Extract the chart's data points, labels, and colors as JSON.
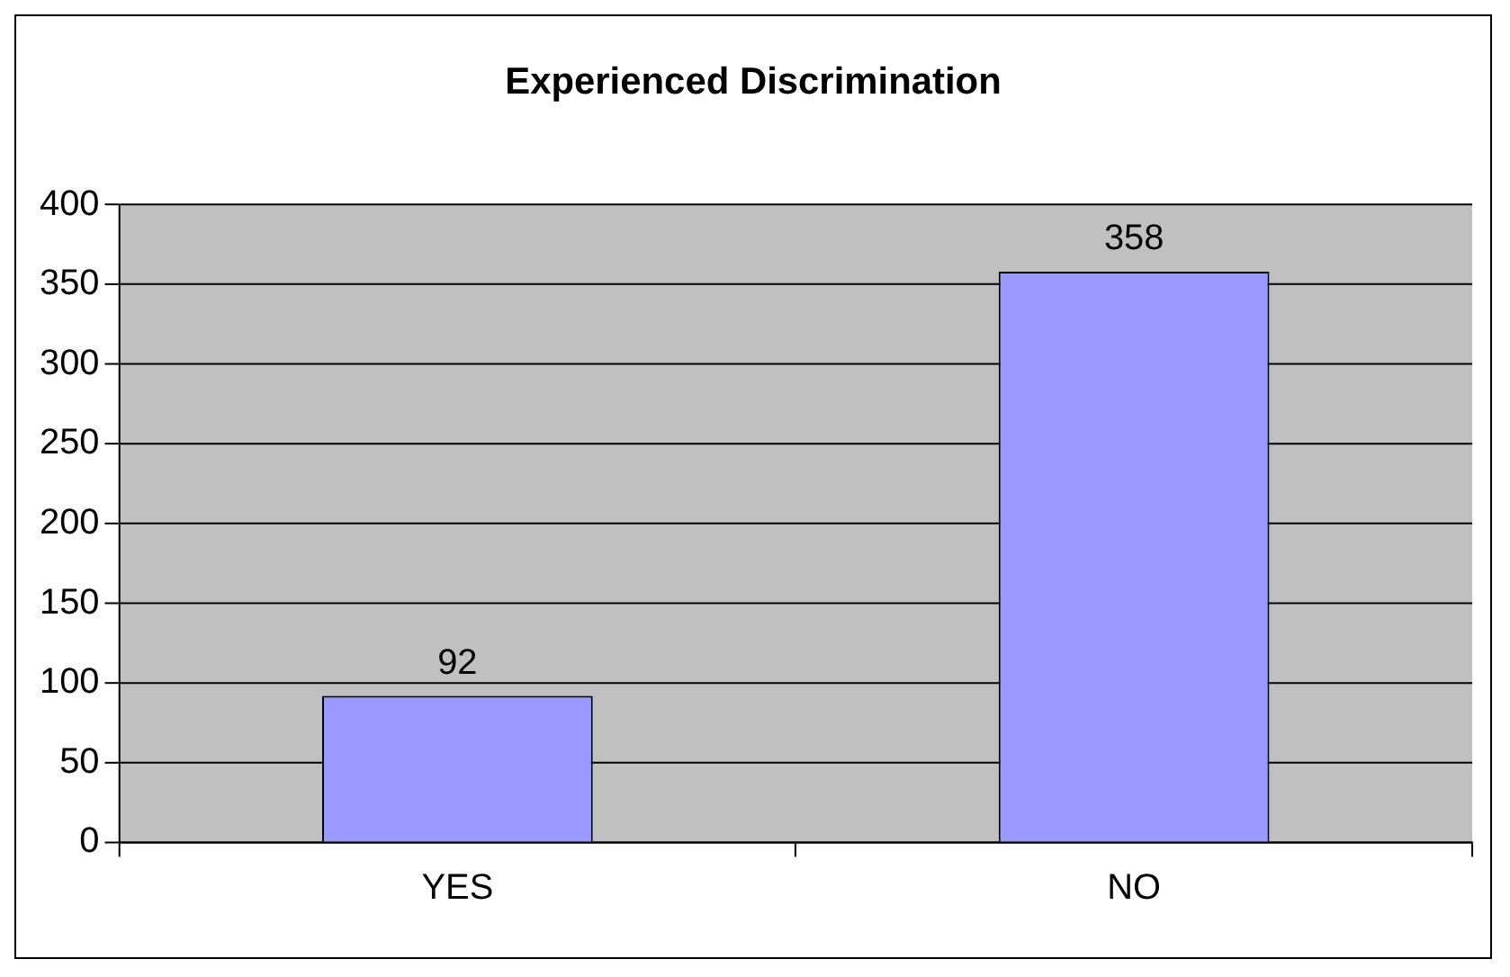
{
  "chart_data": {
    "type": "bar",
    "title": "Experienced Discrimination",
    "categories": [
      "YES",
      "NO"
    ],
    "values": [
      92,
      358
    ],
    "color": "#9999ff",
    "ylim": [
      0,
      400
    ],
    "yticks": [
      0,
      50,
      100,
      150,
      200,
      250,
      300,
      350,
      400
    ],
    "grid": "y",
    "legend": false,
    "data_labels": true
  }
}
